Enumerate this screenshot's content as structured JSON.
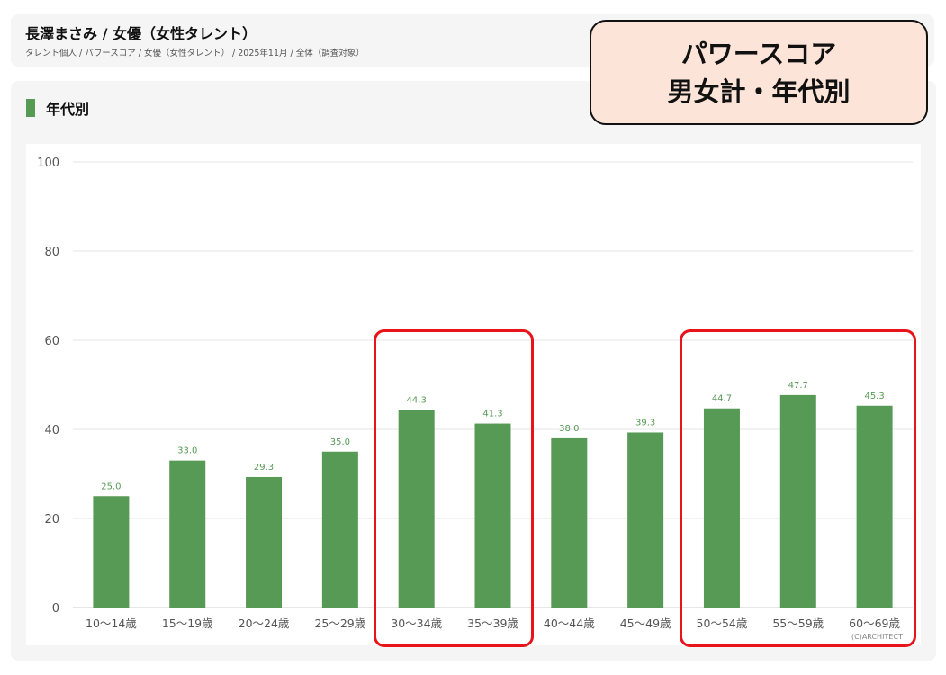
{
  "header": {
    "title": "長澤まさみ / 女優（女性タレント）",
    "breadcrumb": "タレント個人 / パワースコア / 女優（女性タレント） / 2025年11月 / 全体（調査対象）"
  },
  "section": {
    "title": "年代別"
  },
  "callout": {
    "line1": "パワースコア",
    "line2": "男女計・年代別",
    "background_color": "#fce4d8"
  },
  "copyright": "(C)ARCHITECT",
  "colors": {
    "bar": "#579a55",
    "label": "#579a55",
    "highlight": "#e8141a"
  },
  "chart_data": {
    "type": "bar",
    "categories": [
      "10〜14歳",
      "15〜19歳",
      "20〜24歳",
      "25〜29歳",
      "30〜34歳",
      "35〜39歳",
      "40〜44歳",
      "45〜49歳",
      "50〜54歳",
      "55〜59歳",
      "60〜69歳"
    ],
    "values": [
      25.0,
      33.0,
      29.3,
      35.0,
      44.3,
      41.3,
      38.0,
      39.3,
      44.7,
      47.7,
      45.3
    ],
    "value_labels": [
      "25.0",
      "33.0",
      "29.3",
      "35.0",
      "44.3",
      "41.3",
      "38.0",
      "39.3",
      "44.7",
      "47.7",
      "45.3"
    ],
    "yticks": [
      "0",
      "20",
      "40",
      "60",
      "80",
      "100"
    ],
    "ylim": [
      0,
      100
    ],
    "grid": true,
    "legend": "none",
    "highlighted_groups": [
      [
        "30〜34歳",
        "35〜39歳"
      ],
      [
        "50〜54歳",
        "55〜59歳",
        "60〜69歳"
      ]
    ]
  }
}
